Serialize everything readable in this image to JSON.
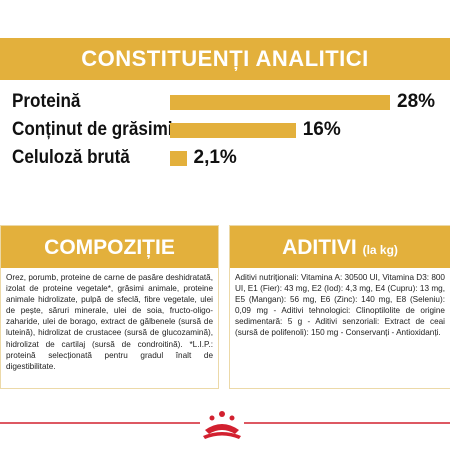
{
  "analytic": {
    "title": "CONSTITUENȚI ANALITICI",
    "items": [
      {
        "label": "Proteină",
        "value": 28,
        "value_label": "28%"
      },
      {
        "label": "Conținut de grăsimi",
        "value": 16,
        "value_label": "16%"
      },
      {
        "label": "Celuloză brută",
        "value": 2.1,
        "value_label": "2,1%"
      }
    ]
  },
  "composition": {
    "title": "COMPOZIȚIE",
    "text": "Orez, porumb, proteine de carne de pasăre deshidratată, izolat de proteine vegetale*, grăsimi animale, proteine animale hidrolizate, pulpă de sfeclă, fibre vegetale, ulei de pește, săruri minerale, ulei de soia, fructo-oligo-zaharide, ulei de borago, extract de gălbenele (sursă de luteină), hidrolizat de crustacee (sursă de glucozamină), hidrolizat de cartilaj (sursă de condroitină). *L.I.P.: proteină selecționată pentru gradul înalt de digestibilitate."
  },
  "additives": {
    "title": "ADITIVI",
    "unit": "(la kg)",
    "text": "Aditivi nutriționali: Vitamina A: 30500 UI, Vitamina D3: 800 UI, E1 (Fier): 43 mg, E2 (Iod): 4,3 mg, E4 (Cupru): 13 mg, E5 (Mangan): 56 mg, E6 (Zinc): 140 mg, E8 (Seleniu): 0,09 mg - Aditivi tehnologici: Clinoptilolite de origine sedimentară: 5 g - Aditivi senzoriali: Extract de ceai (sursă de polifenoli): 150 mg - Conservanți - Antioxidanți."
  }
}
